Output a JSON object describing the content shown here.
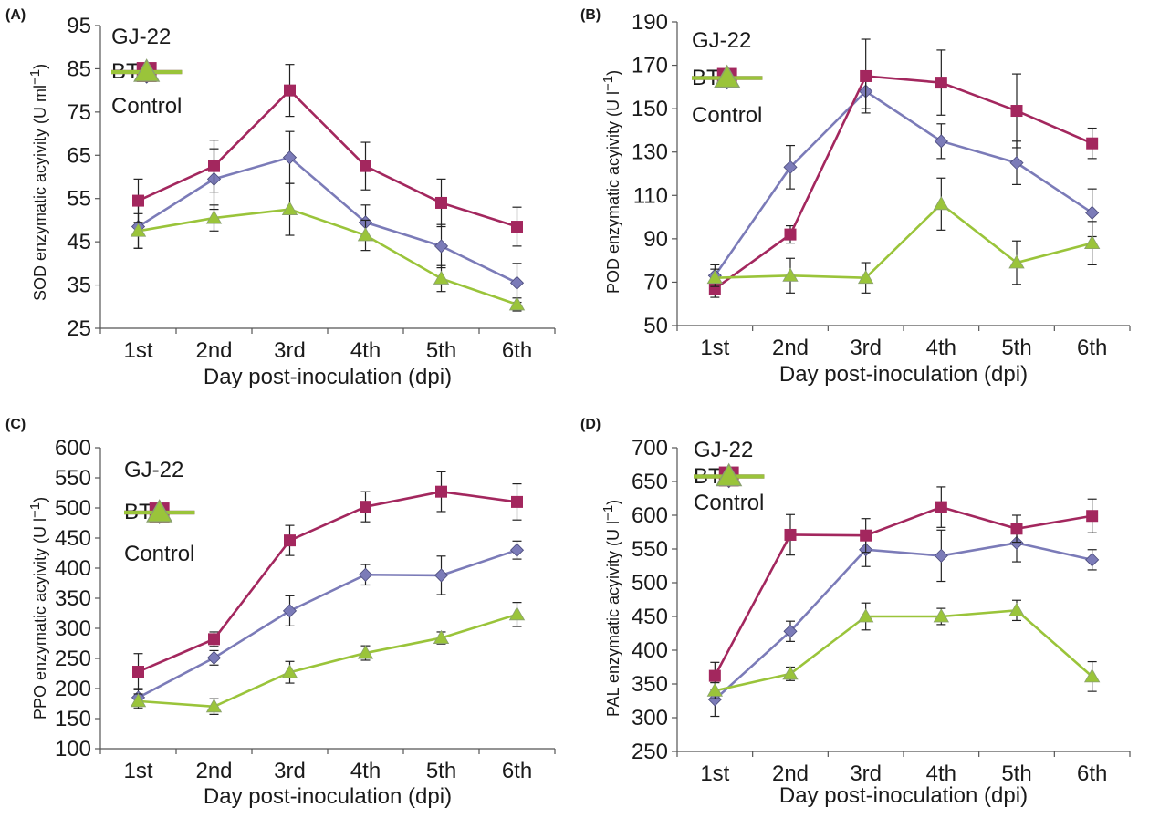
{
  "chart_data": [
    {
      "panel_label": "(A)",
      "type": "line",
      "xlabel": "Day post-inoculation (dpi)",
      "ylabel": "SOD enzymatic acyivity (U ml",
      "ylabel_sup": "−1",
      "ylabel_close": ")",
      "categories": [
        "1st",
        "2nd",
        "3rd",
        "4th",
        "5th",
        "6th"
      ],
      "ylim": [
        25,
        95
      ],
      "yticks": [
        25,
        35,
        45,
        55,
        65,
        75,
        85,
        95
      ],
      "grid": false,
      "legend": "top-left",
      "series": [
        {
          "name": "GJ-22",
          "color": "#7b7bb8",
          "marker": "diamond",
          "values": [
            48.5,
            59.5,
            64.5,
            49.5,
            44,
            35.5
          ],
          "errors": [
            5,
            7,
            6,
            4,
            5,
            4.5
          ]
        },
        {
          "name": "BTH",
          "color": "#a3275e",
          "marker": "square",
          "values": [
            54.5,
            62.5,
            80,
            62.5,
            54,
            48.5
          ],
          "errors": [
            5,
            6,
            6,
            5.5,
            5.5,
            4.5
          ]
        },
        {
          "name": "Control",
          "color": "#9ac43a",
          "marker": "triangle",
          "values": [
            47.5,
            50.5,
            52.5,
            46.5,
            36.5,
            30.5
          ],
          "errors": [
            4,
            3,
            6,
            3.5,
            3,
            1.5
          ]
        }
      ]
    },
    {
      "panel_label": "(B)",
      "type": "line",
      "xlabel": "Day post-inoculation (dpi)",
      "ylabel": "POD enzymatic acyivity (U l",
      "ylabel_sup": "−1",
      "ylabel_close": ")",
      "categories": [
        "1st",
        "2nd",
        "3rd",
        "4th",
        "5th",
        "6th"
      ],
      "ylim": [
        50,
        190
      ],
      "yticks": [
        50,
        70,
        90,
        110,
        130,
        150,
        170,
        190
      ],
      "grid": false,
      "legend": "top-left",
      "series": [
        {
          "name": "GJ-22",
          "color": "#7b7bb8",
          "marker": "diamond",
          "values": [
            73,
            123,
            158,
            135,
            125,
            102
          ],
          "errors": [
            5,
            10,
            8,
            8,
            10,
            11
          ]
        },
        {
          "name": "BTH",
          "color": "#a3275e",
          "marker": "square",
          "values": [
            67,
            92,
            165,
            162,
            149,
            134
          ],
          "errors": [
            4,
            4,
            17,
            15,
            17,
            7
          ]
        },
        {
          "name": "Control",
          "color": "#9ac43a",
          "marker": "triangle",
          "values": [
            72,
            73,
            72,
            106,
            79,
            88
          ],
          "errors": [
            4,
            8,
            7,
            12,
            10,
            10
          ]
        }
      ]
    },
    {
      "panel_label": "(C)",
      "type": "line",
      "xlabel": "Day post-inoculation (dpi)",
      "ylabel": "PPO enzymatic acyivity (U l",
      "ylabel_sup": "−1",
      "ylabel_close": ")",
      "categories": [
        "1st",
        "2nd",
        "3rd",
        "4th",
        "5th",
        "6th"
      ],
      "ylim": [
        100,
        600
      ],
      "yticks": [
        100,
        150,
        200,
        250,
        300,
        350,
        400,
        450,
        500,
        550,
        600
      ],
      "grid": false,
      "legend": "top-left",
      "series": [
        {
          "name": "GJ-22",
          "color": "#7b7bb8",
          "marker": "diamond",
          "values": [
            185,
            251,
            329,
            389,
            388,
            430
          ],
          "errors": [
            15,
            12,
            25,
            17,
            32,
            15
          ]
        },
        {
          "name": "BTH",
          "color": "#a3275e",
          "marker": "square",
          "values": [
            228,
            282,
            446,
            502,
            527,
            510
          ],
          "errors": [
            30,
            12,
            25,
            25,
            33,
            30
          ]
        },
        {
          "name": "Control",
          "color": "#9ac43a",
          "marker": "triangle",
          "values": [
            179,
            170,
            227,
            259,
            284,
            323
          ],
          "errors": [
            12,
            13,
            18,
            12,
            10,
            20
          ]
        }
      ]
    },
    {
      "panel_label": "(D)",
      "type": "line",
      "xlabel": "Day post-inoculation (dpi)",
      "ylabel": "PAL enzymatic acyivity (U l",
      "ylabel_sup": "−1",
      "ylabel_close": ")",
      "categories": [
        "1st",
        "2nd",
        "3rd",
        "4th",
        "5th",
        "6th"
      ],
      "ylim": [
        250,
        700
      ],
      "yticks": [
        250,
        300,
        350,
        400,
        450,
        500,
        550,
        600,
        650,
        700
      ],
      "grid": false,
      "legend": "top-left",
      "series": [
        {
          "name": "GJ-22",
          "color": "#7b7bb8",
          "marker": "diamond",
          "values": [
            327,
            428,
            549,
            540,
            559,
            534
          ],
          "errors": [
            25,
            15,
            25,
            38,
            28,
            15
          ]
        },
        {
          "name": "BTH",
          "color": "#a3275e",
          "marker": "square",
          "values": [
            362,
            571,
            570,
            612,
            580,
            599
          ],
          "errors": [
            20,
            30,
            25,
            30,
            20,
            25
          ]
        },
        {
          "name": "Control",
          "color": "#9ac43a",
          "marker": "triangle",
          "values": [
            340,
            365,
            450,
            450,
            459,
            361
          ],
          "errors": [
            12,
            10,
            20,
            12,
            15,
            22
          ]
        }
      ]
    }
  ]
}
